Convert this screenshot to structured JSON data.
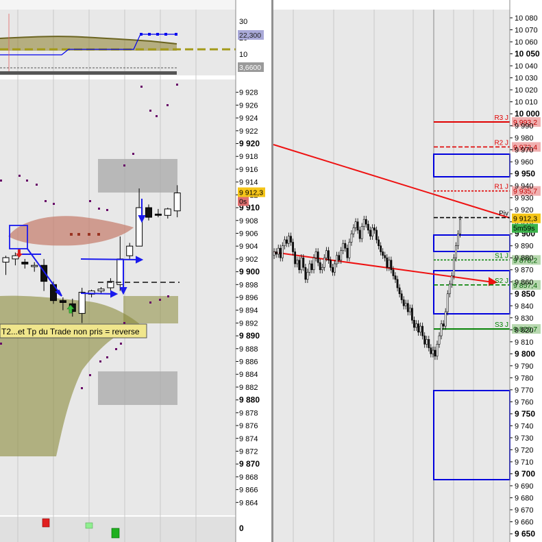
{
  "chart_data": [
    {
      "type": "candlestick",
      "panel": "left",
      "title": "",
      "ylim": [
        9862,
        9930
      ],
      "y_ticks": [
        9864,
        9866,
        9868,
        9870,
        9872,
        9874,
        9876,
        9878,
        9880,
        9882,
        9884,
        9886,
        9888,
        9890,
        9892,
        9894,
        9896,
        9898,
        9900,
        9902,
        9904,
        9906,
        9908,
        9910,
        9912,
        9914,
        9916,
        9918,
        9920,
        9922,
        9924,
        9926,
        9928
      ],
      "y_tick_labels": [
        "9 864",
        "9 866",
        "9 868",
        "9 870",
        "9 872",
        "9 874",
        "9 876",
        "9 878",
        "9 880",
        "9 882",
        "9 884",
        "9 886",
        "9 888",
        "9 890",
        "9 892",
        "9 894",
        "9 896",
        "9 898",
        "9 900",
        "9 902",
        "9 904",
        "9 906",
        "9 908",
        "9 910",
        "9 912",
        "9 914",
        "9 916",
        "9 918",
        "9 920",
        "9 922",
        "9 924",
        "9 926",
        "9 928"
      ],
      "bold_ticks": [
        9870,
        9880,
        9890,
        9900,
        9910,
        9920
      ],
      "candles": [
        {
          "o": 9901.5,
          "h": 9902.5,
          "l": 9899.5,
          "c": 9902.2
        },
        {
          "o": 9902.0,
          "h": 9903.0,
          "l": 9901.0,
          "c": 9902.5
        },
        {
          "o": 9901.5,
          "h": 9902.0,
          "l": 9900.5,
          "c": 9901.2
        },
        {
          "o": 9900.8,
          "h": 9901.5,
          "l": 9900.0,
          "c": 9901.0
        },
        {
          "o": 9901.0,
          "h": 9902.0,
          "l": 9897.0,
          "c": 9898.5
        },
        {
          "o": 9898.0,
          "h": 9898.5,
          "l": 9895.0,
          "c": 9895.5
        },
        {
          "o": 9895.5,
          "h": 9896.0,
          "l": 9894.0,
          "c": 9895.2
        },
        {
          "o": 9895.0,
          "h": 9895.8,
          "l": 9893.0,
          "c": 9893.8
        },
        {
          "o": 9893.5,
          "h": 9897.5,
          "l": 9892.0,
          "c": 9896.8
        },
        {
          "o": 9896.5,
          "h": 9897.2,
          "l": 9896.0,
          "c": 9897.0
        },
        {
          "o": 9897.0,
          "h": 9897.6,
          "l": 9896.6,
          "c": 9897.3
        },
        {
          "o": 9897.5,
          "h": 9899.0,
          "l": 9897.0,
          "c": 9898.5
        },
        {
          "o": 9898.0,
          "h": 9905.5,
          "l": 9897.0,
          "c": 9902.0
        },
        {
          "o": 9902.5,
          "h": 9904.5,
          "l": 9902.0,
          "c": 9904.0
        },
        {
          "o": 9904.0,
          "h": 9913.0,
          "l": 9904.0,
          "c": 9910.0
        },
        {
          "o": 9910.0,
          "h": 9910.5,
          "l": 9908.0,
          "c": 9908.5
        },
        {
          "o": 9909.0,
          "h": 9909.8,
          "l": 9908.5,
          "c": 9908.8
        },
        {
          "o": 9908.8,
          "h": 9910.0,
          "l": 9908.3,
          "c": 9909.8
        },
        {
          "o": 9909.5,
          "h": 9913.5,
          "l": 9908.5,
          "c": 9912.3
        }
      ],
      "annotation": "T2...et Tp du Trade non pris = reverse",
      "last_price_label": "9 912,3",
      "timer_label": "0s",
      "indicator_axis_labels": [
        "30",
        "20",
        "10"
      ],
      "indicator_value_1": "22,300",
      "indicator_value_2": "3,6600",
      "volume_axis_label": "0"
    },
    {
      "type": "candlestick",
      "panel": "right",
      "title": "",
      "ylim": [
        9650,
        10090
      ],
      "y_ticks": [
        9650,
        9660,
        9670,
        9680,
        9690,
        9700,
        9710,
        9720,
        9730,
        9740,
        9750,
        9760,
        9770,
        9780,
        9790,
        9800,
        9810,
        9820,
        9830,
        9840,
        9850,
        9860,
        9870,
        9880,
        9890,
        9900,
        9910,
        9920,
        9930,
        9940,
        9950,
        9960,
        9970,
        9980,
        9990,
        10000,
        10010,
        10020,
        10030,
        10040,
        10050,
        10060,
        10070,
        10080
      ],
      "y_tick_labels": [
        "9 650",
        "9 660",
        "9 670",
        "9 680",
        "9 690",
        "9 700",
        "9 710",
        "9 720",
        "9 730",
        "9 740",
        "9 750",
        "9 760",
        "9 770",
        "9 780",
        "9 790",
        "9 800",
        "9 810",
        "9 820",
        "9 830",
        "9 840",
        "9 850",
        "9 860",
        "9 870",
        "9 880",
        "9 890",
        "9 900",
        "9 910",
        "9 920",
        "9 930",
        "9 940",
        "9 950",
        "9 960",
        "9 970",
        "9 980",
        "9 990",
        "10 000",
        "10 010",
        "10 020",
        "10 030",
        "10 040",
        "10 050",
        "10 060",
        "10 070",
        "10 080"
      ],
      "bold_ticks": [
        9650,
        9700,
        9750,
        9800,
        9850,
        9900,
        9950,
        10000,
        10050
      ],
      "pivot_levels": [
        {
          "name": "R3 J",
          "value": 9993.2,
          "label": "9 993,2",
          "color": "#e00000",
          "style": "solid"
        },
        {
          "name": "R2 J",
          "value": 9972.4,
          "label": "9 972,4",
          "color": "#e00000",
          "style": "dashed"
        },
        {
          "name": "R1 J",
          "value": 9935.7,
          "label": "9 935,7",
          "color": "#e00000",
          "style": "dotted"
        },
        {
          "name": "Piv",
          "value": 9913.5,
          "label": "",
          "color": "#000000",
          "style": "dashed"
        },
        {
          "name": "S1 J",
          "value": 9878.2,
          "label": "9 878,2",
          "color": "#008000",
          "style": "dotted"
        },
        {
          "name": "S2 J",
          "value": 9857.4,
          "label": "9 857,4",
          "color": "#008000",
          "style": "dashed"
        },
        {
          "name": "S3 J",
          "value": 9820.7,
          "label": "9 820,7",
          "color": "#008000",
          "style": "solid"
        }
      ],
      "last_price_label": "9 912,3",
      "timer_label": "5m59s"
    }
  ]
}
